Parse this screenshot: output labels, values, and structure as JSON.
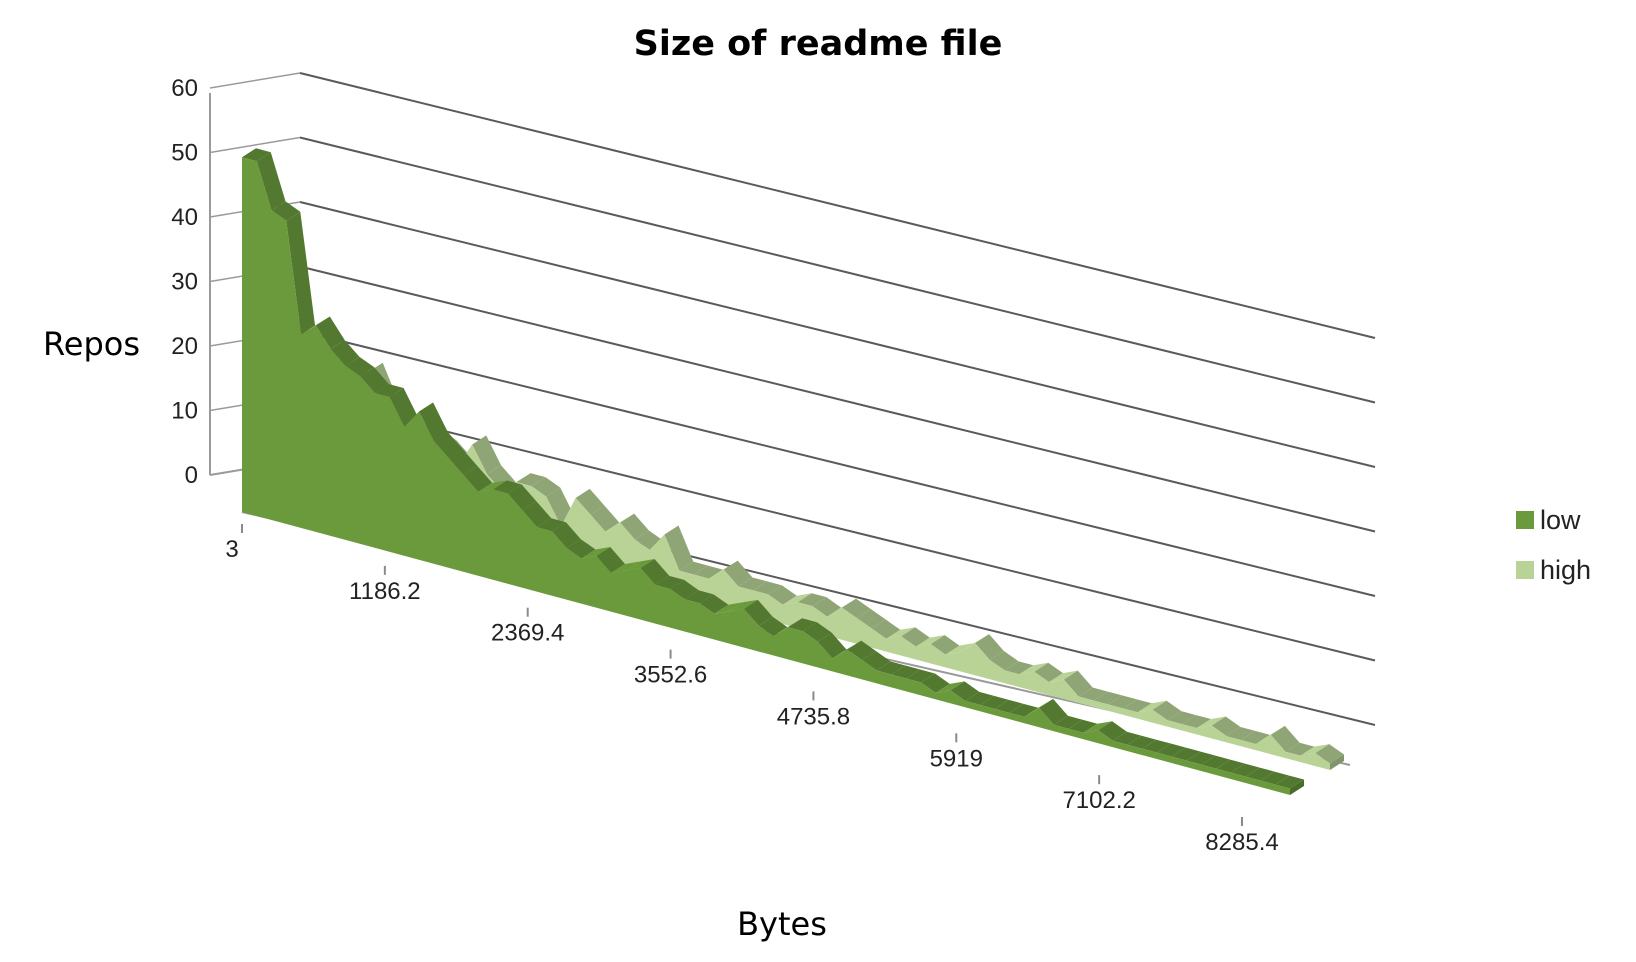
{
  "chart_data": {
    "type": "area",
    "title": "Size of readme file",
    "xlabel": "Bytes",
    "ylabel": "Repos",
    "ylim": [
      0,
      60
    ],
    "y_ticks": [
      "0",
      "10",
      "20",
      "30",
      "40",
      "50",
      "60"
    ],
    "x_tick_labels": [
      "3",
      "1186.2",
      "2369.4",
      "3552.6",
      "4735.8",
      "5919",
      "7102.2",
      "8285.4"
    ],
    "legend_position": "right",
    "grid": true,
    "style": "3d-area",
    "series": [
      {
        "name": "low",
        "color": "#6a9a3c",
        "values": [
          55,
          55,
          48,
          47,
          30,
          32,
          29,
          27,
          26,
          24,
          24,
          20,
          23,
          19,
          17,
          15,
          13,
          14,
          14,
          12,
          10,
          10,
          8,
          7,
          8,
          6,
          7,
          8,
          6,
          6,
          5,
          5,
          4,
          5,
          6,
          4,
          3,
          5,
          5,
          4,
          2,
          4,
          3,
          2,
          2,
          2,
          2,
          1,
          2,
          1,
          1,
          1,
          1,
          1,
          3,
          1,
          1,
          1,
          2,
          1,
          1,
          1,
          1,
          1,
          1,
          1,
          1,
          1,
          1,
          1,
          1,
          1
        ]
      },
      {
        "name": "high",
        "color": "#b9d396",
        "values": [
          26,
          24,
          22,
          22,
          21,
          20,
          22,
          17,
          15,
          14,
          14,
          13,
          11,
          15,
          11,
          9,
          11,
          11,
          10,
          6,
          11,
          9,
          7,
          9,
          7,
          6,
          9,
          4,
          4,
          4,
          6,
          4,
          4,
          4,
          3,
          4,
          4,
          3,
          5,
          4,
          3,
          2,
          3,
          2,
          3,
          2,
          3,
          5,
          3,
          2,
          2,
          3,
          2,
          3,
          1,
          1,
          1,
          1,
          1,
          2,
          1,
          1,
          1,
          2,
          1,
          1,
          1,
          3,
          1,
          1,
          2,
          1
        ]
      }
    ]
  }
}
